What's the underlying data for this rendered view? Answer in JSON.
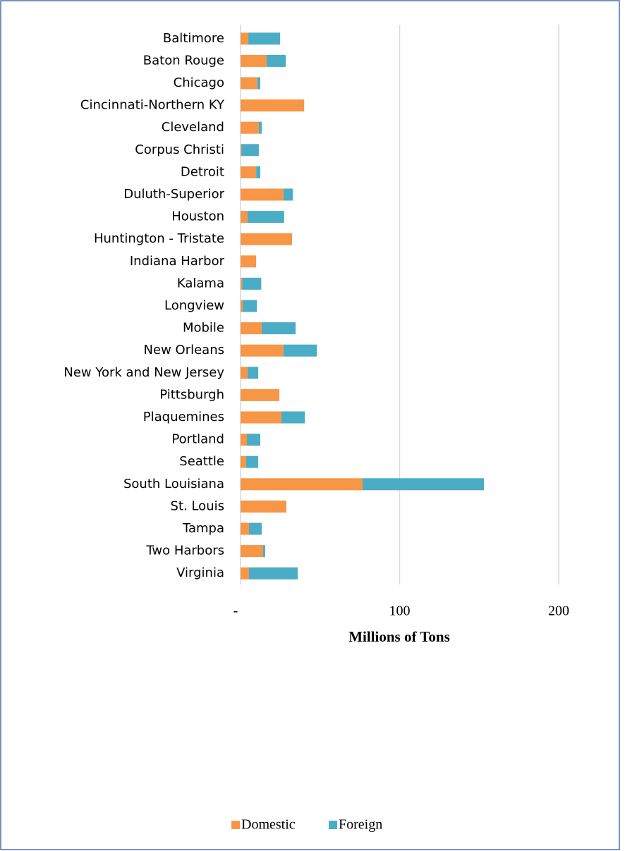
{
  "chart_data": {
    "type": "stacked-bar-horizontal",
    "x_axis_label": "Millions of Tons",
    "categories": [
      "Baltimore",
      "Baton Rouge",
      "Chicago",
      "Cincinnati-Northern KY",
      "Cleveland",
      "Corpus Christi",
      "Detroit",
      "Duluth-Superior",
      "Houston",
      "Huntington - Tristate",
      "Indiana Harbor",
      "Kalama",
      "Longview",
      "Mobile",
      "New Orleans",
      "New York and New Jersey",
      "Pittsburgh",
      "Plaquemines",
      "Portland",
      "Seattle",
      "South Louisiana",
      "St. Louis",
      "Tampa",
      "Two Harbors",
      "Virginia"
    ],
    "series": [
      {
        "name": "Domestic",
        "color": "#f79646",
        "values": [
          4.9,
          16.4,
          10.6,
          40,
          11.5,
          0.5,
          9.8,
          27,
          4.4,
          32.4,
          9.8,
          1,
          1.3,
          13.3,
          27,
          4.4,
          24.4,
          25.7,
          4,
          3.5,
          76.7,
          28.8,
          5.3,
          14.2,
          5.3
        ]
      },
      {
        "name": "Foreign",
        "color": "#4bacc6",
        "values": [
          20,
          12,
          1.8,
          0,
          1.8,
          11,
          2.6,
          5.8,
          23,
          0,
          0,
          12,
          9,
          21.3,
          21,
          6.7,
          0,
          14.7,
          8.4,
          7.6,
          76.3,
          0,
          8,
          1.3,
          30.6
        ]
      }
    ],
    "xlim": [
      0,
      225
    ],
    "xticks": [
      {
        "value": 0,
        "label": "-"
      },
      100,
      200
    ],
    "grid": true,
    "legend": "bottom"
  }
}
